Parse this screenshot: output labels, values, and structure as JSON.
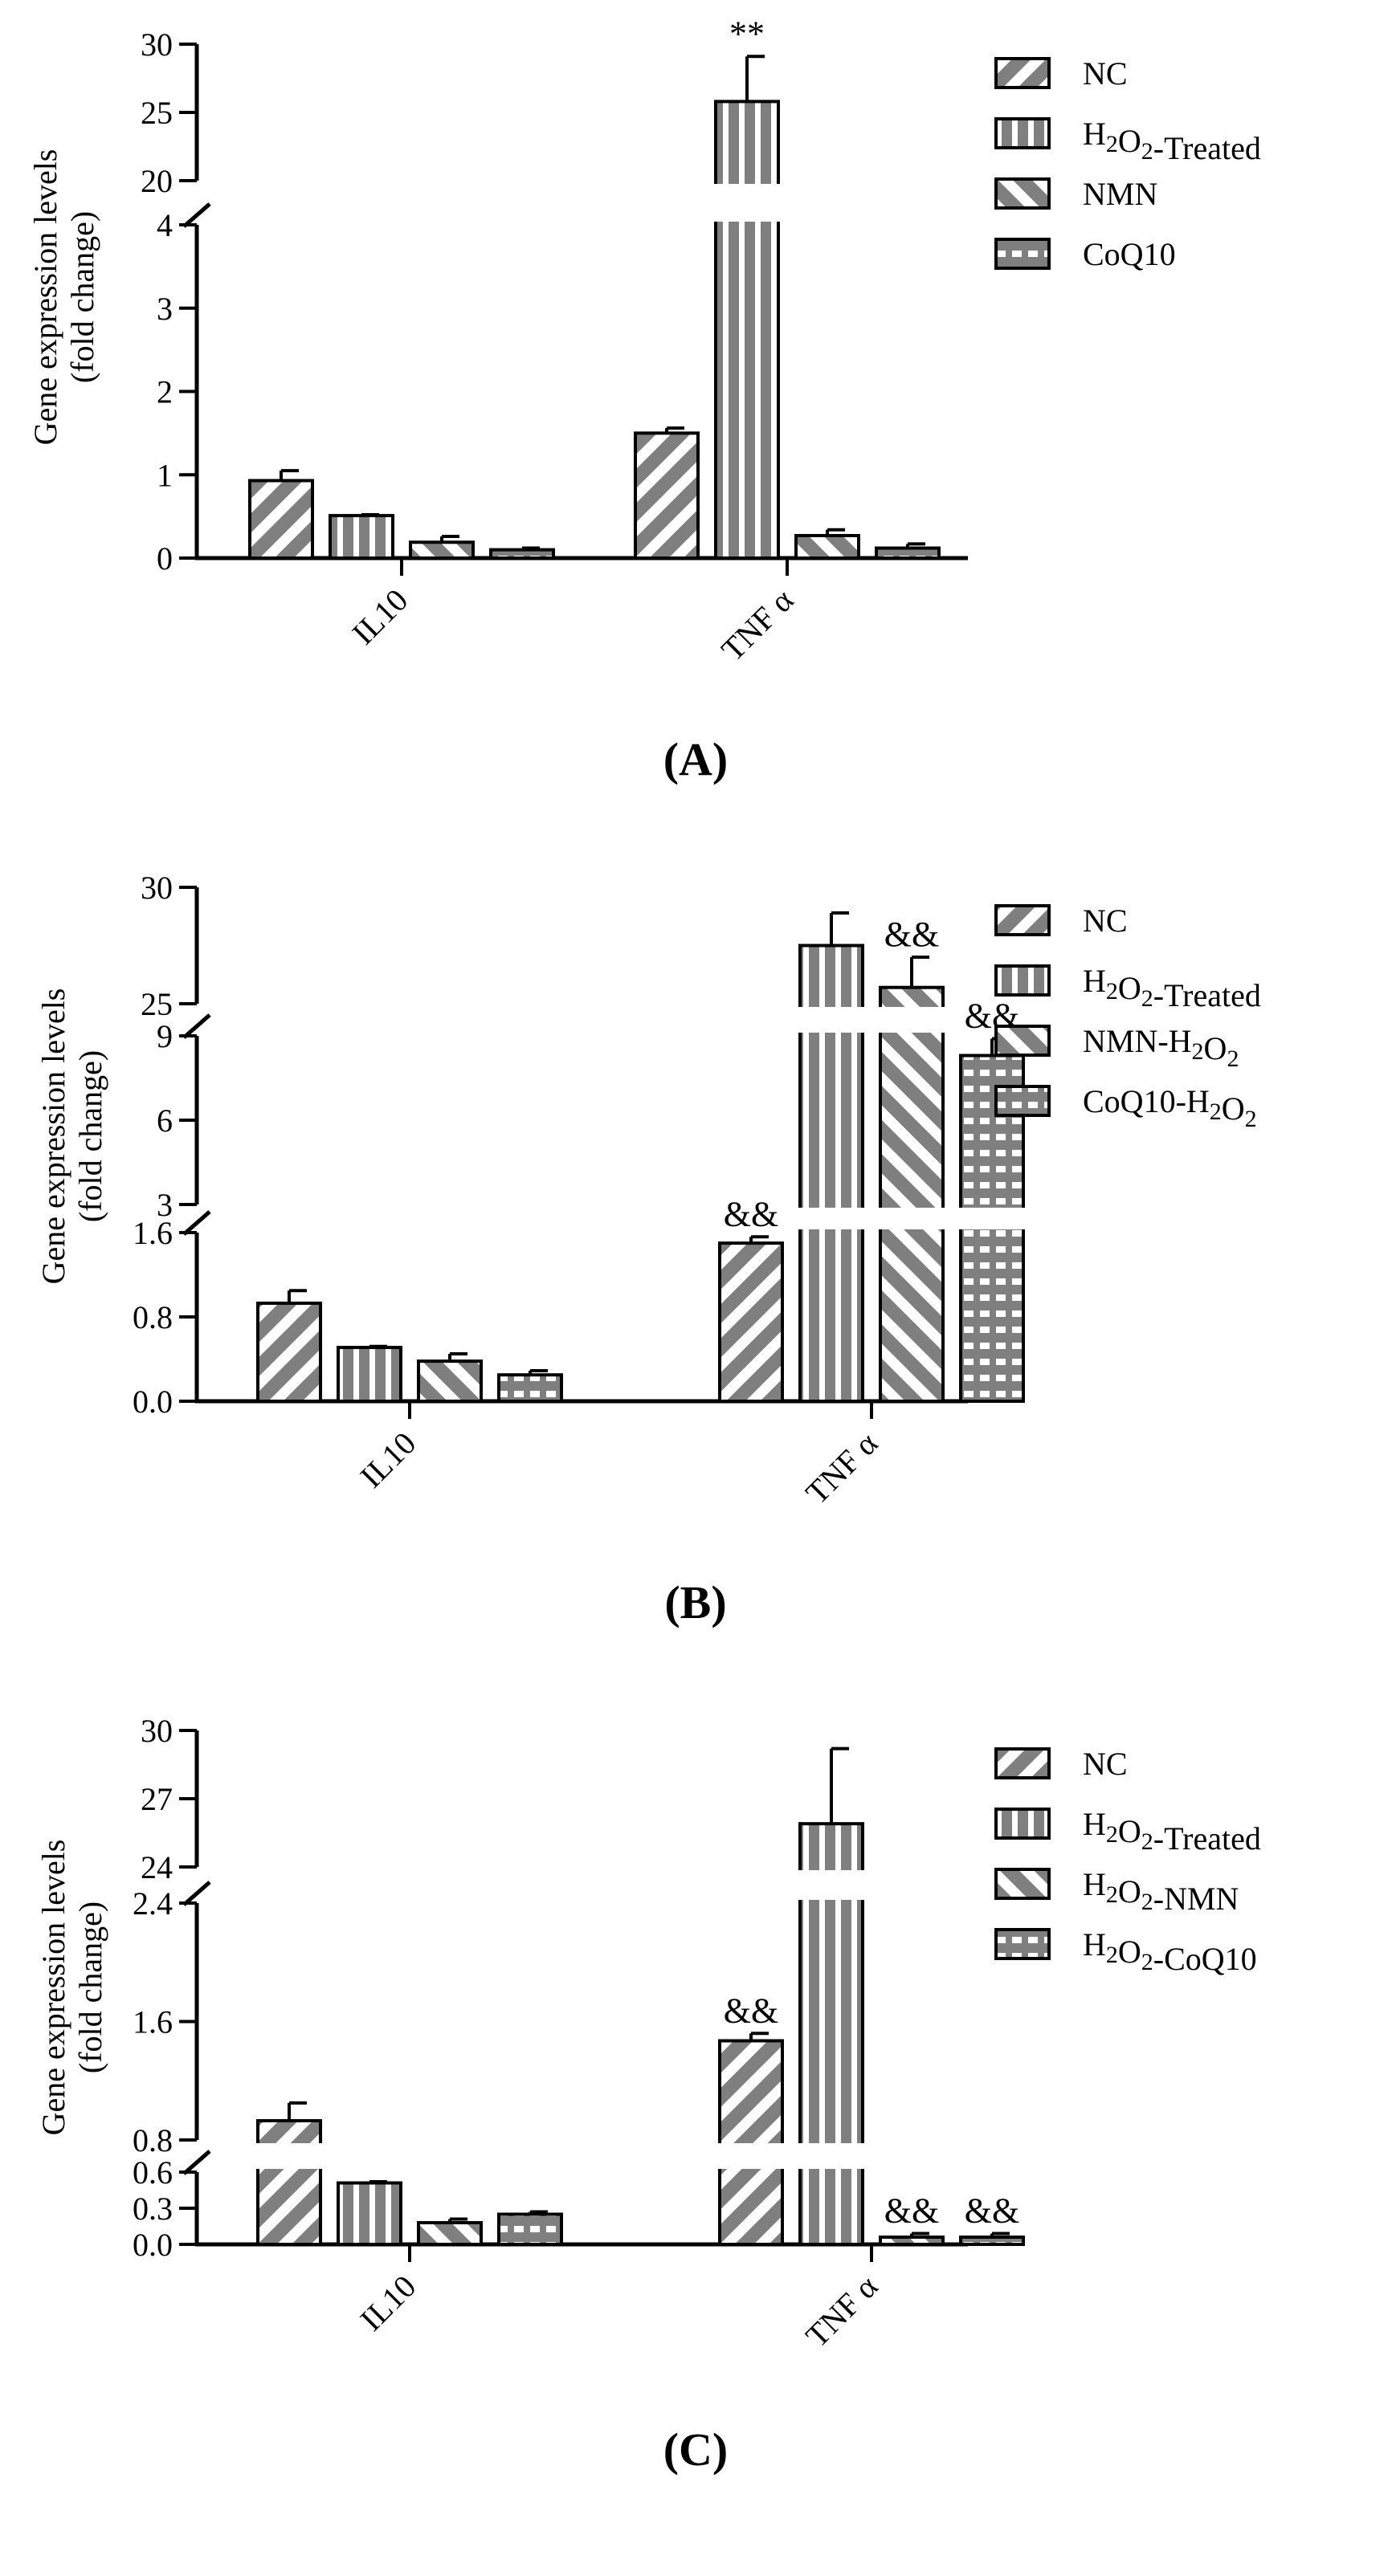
{
  "figure": {
    "colors": {
      "bar": "#7f7f7f",
      "stripe": "#ffffff",
      "axis": "#000000"
    },
    "icons": [
      "diagonal-stripe-pattern",
      "vertical-stripe-pattern",
      "wide-diagonal-stripe-pattern",
      "grid-pattern"
    ]
  },
  "chart_data": [
    {
      "panel": "(A)",
      "type": "bar",
      "ylabel": [
        "Gene expression levels",
        "(fold change)"
      ],
      "categories": [
        "IL10",
        "TNF α"
      ],
      "series": [
        {
          "name": "NC",
          "values": [
            0.93,
            1.5
          ],
          "errors": [
            0.12,
            0.06
          ]
        },
        {
          "name": "H2O2-Treated",
          "values": [
            0.51,
            25.8
          ],
          "errors": [
            0.01,
            3.3
          ]
        },
        {
          "name": "NMN",
          "values": [
            0.19,
            0.27
          ],
          "errors": [
            0.07,
            0.07
          ]
        },
        {
          "name": "CoQ10",
          "values": [
            0.1,
            0.12
          ],
          "errors": [
            0.02,
            0.05
          ]
        }
      ],
      "legend_labels": [
        "NC",
        "H₂O₂-Treated",
        "NMN",
        "CoQ10"
      ],
      "annotations": [
        {
          "category": 1,
          "series": 1,
          "text": "**"
        }
      ],
      "axis_segments": [
        {
          "range": [
            0,
            4
          ],
          "ticks": [
            "0",
            "1",
            "2",
            "3",
            "4"
          ]
        },
        {
          "range": [
            20,
            30
          ],
          "ticks": [
            "20",
            "25",
            "30"
          ]
        }
      ]
    },
    {
      "panel": "(B)",
      "type": "bar",
      "ylabel": [
        "Gene expression levels",
        "(fold change)"
      ],
      "categories": [
        "IL10",
        "TNF α"
      ],
      "series": [
        {
          "name": "NC",
          "values": [
            0.93,
            1.5
          ],
          "errors": [
            0.12,
            0.06
          ]
        },
        {
          "name": "H2O2-Treated",
          "values": [
            0.51,
            27.5
          ],
          "errors": [
            0.01,
            1.4
          ]
        },
        {
          "name": "NMN-H2O2",
          "values": [
            0.38,
            25.7
          ],
          "errors": [
            0.07,
            1.3
          ]
        },
        {
          "name": "CoQ10-H2O2",
          "values": [
            0.25,
            8.3
          ],
          "errors": [
            0.04,
            0.6
          ]
        }
      ],
      "legend_labels": [
        "NC",
        "H₂O₂-Treated",
        "NMN-H₂O₂",
        "CoQ10-H₂O₂"
      ],
      "annotations": [
        {
          "category": 1,
          "series": 0,
          "text": "&&"
        },
        {
          "category": 1,
          "series": 2,
          "text": "&&"
        },
        {
          "category": 1,
          "series": 3,
          "text": "&&"
        }
      ],
      "axis_segments": [
        {
          "range": [
            0,
            1.6
          ],
          "ticks": [
            "0.0",
            "0.8",
            "1.6"
          ]
        },
        {
          "range": [
            3,
            9
          ],
          "ticks": [
            "3",
            "6",
            "9"
          ]
        },
        {
          "range": [
            25,
            30
          ],
          "ticks": [
            "25",
            "30"
          ]
        }
      ]
    },
    {
      "panel": "(C)",
      "type": "bar",
      "ylabel": [
        "Gene expression levels",
        "(fold change)"
      ],
      "categories": [
        "IL10",
        "TNF α"
      ],
      "series": [
        {
          "name": "NC",
          "values": [
            0.93,
            1.47
          ],
          "errors": [
            0.12,
            0.05
          ]
        },
        {
          "name": "H2O2-Treated",
          "values": [
            0.51,
            25.9
          ],
          "errors": [
            0.01,
            3.3
          ]
        },
        {
          "name": "H2O2-NMN",
          "values": [
            0.18,
            0.06
          ],
          "errors": [
            0.03,
            0.03
          ]
        },
        {
          "name": "H2O2-CoQ10",
          "values": [
            0.25,
            0.06
          ],
          "errors": [
            0.02,
            0.03
          ]
        }
      ],
      "legend_labels": [
        "NC",
        "H₂O₂-Treated",
        "H₂O₂-NMN",
        "H₂O₂-CoQ10"
      ],
      "annotations": [
        {
          "category": 1,
          "series": 0,
          "text": "&&"
        },
        {
          "category": 1,
          "series": 2,
          "text": "&&"
        },
        {
          "category": 1,
          "series": 3,
          "text": "&&"
        }
      ],
      "axis_segments": [
        {
          "range": [
            0,
            0.6
          ],
          "ticks": [
            "0.0",
            "0.3",
            "0.6"
          ]
        },
        {
          "range": [
            0.8,
            2.4
          ],
          "ticks": [
            "0.8",
            "1.6",
            "2.4"
          ]
        },
        {
          "range": [
            24,
            30
          ],
          "ticks": [
            "24",
            "27",
            "30"
          ]
        }
      ]
    }
  ]
}
